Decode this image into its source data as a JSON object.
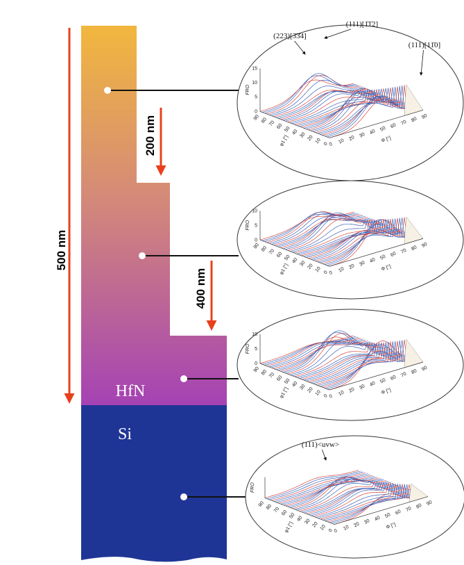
{
  "labels": {
    "depth_total": "500 nm",
    "depth_200": "200 nm",
    "depth_400": "400 nm",
    "film": "HfN",
    "substrate": "Si"
  },
  "plots": [
    {
      "z_label": "FRO",
      "z_ticks": [
        "15",
        "10",
        "5",
        "0"
      ],
      "phi1_label": "φ1 [°]",
      "Phi_label": "Φ [°]",
      "phi1_ticks": [
        "90",
        "80",
        "70",
        "60",
        "50",
        "40",
        "30",
        "20",
        "10",
        "0"
      ],
      "Phi_ticks": [
        "0",
        "10",
        "20",
        "30",
        "40",
        "50",
        "60",
        "70",
        "80",
        "90"
      ],
      "annotations": [
        "(223)[3̄3̄4]",
        "(111)[1̄1̄2]",
        "(111)[11̄0]"
      ]
    },
    {
      "z_label": "FRO",
      "z_ticks": [
        "10",
        "5",
        "0"
      ],
      "phi1_label": "φ1 [°]",
      "Phi_label": "Φ [°]",
      "phi1_ticks": [
        "90",
        "80",
        "70",
        "60",
        "50",
        "40",
        "30",
        "20",
        "10",
        "0"
      ],
      "Phi_ticks": [
        "0",
        "10",
        "20",
        "30",
        "40",
        "50",
        "60",
        "70",
        "80",
        "90"
      ],
      "annotations": []
    },
    {
      "z_label": "FRO",
      "z_ticks": [
        "10",
        "5",
        "0"
      ],
      "phi1_label": "φ1 [°]",
      "Phi_label": "Φ [°]",
      "phi1_ticks": [
        "90",
        "80",
        "70",
        "60",
        "50",
        "40",
        "30",
        "20",
        "10",
        "0"
      ],
      "Phi_ticks": [
        "0",
        "10",
        "20",
        "30",
        "40",
        "50",
        "60",
        "70",
        "80",
        "90"
      ],
      "annotations": []
    },
    {
      "z_label": "FRO",
      "z_ticks": [],
      "phi1_label": "φ1 [°]",
      "Phi_label": "Φ [°]",
      "phi1_ticks": [
        "90",
        "80",
        "70",
        "60",
        "50",
        "40",
        "30",
        "20",
        "10",
        "0"
      ],
      "Phi_ticks": [
        "0",
        "10",
        "20",
        "30",
        "40",
        "50",
        "60",
        "70",
        "80",
        "90"
      ],
      "annotations": [
        "(111)<uvw>"
      ]
    }
  ]
}
